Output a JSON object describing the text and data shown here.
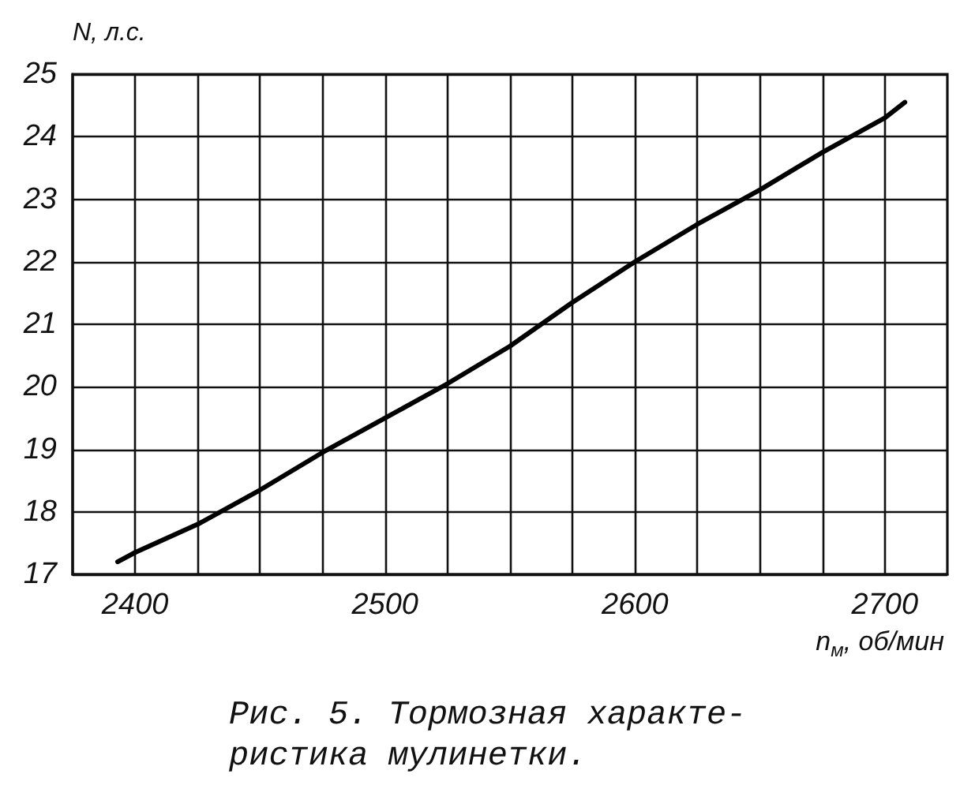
{
  "chart_data": {
    "type": "line",
    "xlabel": "n$_{м}$, об/мин",
    "ylabel": "N, л.с.",
    "annotations": [
      "Рис. 5. Тормозная характе-\nристика мулинетки."
    ],
    "x": [
      2393,
      2400,
      2425,
      2450,
      2475,
      2500,
      2525,
      2550,
      2575,
      2600,
      2625,
      2650,
      2675,
      2700,
      2708
    ],
    "values": [
      17.2,
      17.35,
      17.8,
      18.35,
      18.95,
      19.5,
      20.05,
      20.65,
      21.35,
      22.0,
      22.6,
      23.15,
      23.75,
      24.3,
      24.55
    ],
    "color": "#000000",
    "xlim": [
      2375,
      2725
    ],
    "xticks": [
      2400,
      {
        "value": 2425,
        "label": null
      },
      {
        "value": 2450,
        "label": null
      },
      {
        "value": 2475,
        "label": null
      },
      2500,
      {
        "value": 2525,
        "label": null
      },
      {
        "value": 2550,
        "label": null
      },
      {
        "value": 2575,
        "label": null
      },
      2600,
      {
        "value": 2625,
        "label": null
      },
      {
        "value": 2650,
        "label": null
      },
      {
        "value": 2675,
        "label": null
      },
      2700
    ],
    "ylim": [
      17,
      25
    ],
    "yticks": [
      17,
      18,
      19,
      20,
      21,
      22,
      23,
      24,
      25
    ],
    "grid": true,
    "marker": "none",
    "line_style": "solid"
  }
}
